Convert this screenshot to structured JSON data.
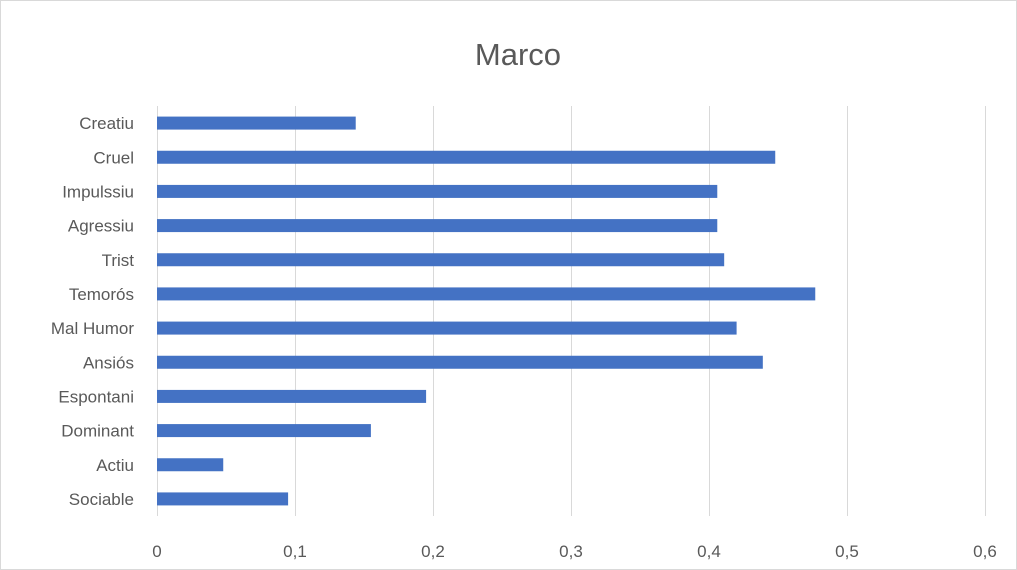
{
  "chart_data": {
    "type": "bar",
    "orientation": "horizontal",
    "title": "Marco",
    "xlabel": "",
    "ylabel": "",
    "categories": [
      "Creatiu",
      "Cruel",
      "Impulssiu",
      "Agressiu",
      "Trist",
      "Temorós",
      "Mal Humor",
      "Ansiós",
      "Espontani",
      "Dominant",
      "Actiu",
      "Sociable"
    ],
    "values": [
      0.144,
      0.448,
      0.406,
      0.406,
      0.411,
      0.477,
      0.42,
      0.439,
      0.195,
      0.155,
      0.048,
      0.095
    ],
    "xlim": [
      0,
      0.6
    ],
    "xticks": [
      0,
      0.1,
      0.2,
      0.3,
      0.4,
      0.5,
      0.6
    ],
    "xtick_labels": [
      "0",
      "0,1",
      "0,2",
      "0,3",
      "0,4",
      "0,5",
      "0,6"
    ],
    "grid": true,
    "legend": "none",
    "bar_color": "#4472c4",
    "gridline_color": "#d9d9d9",
    "text_color": "#595959"
  }
}
